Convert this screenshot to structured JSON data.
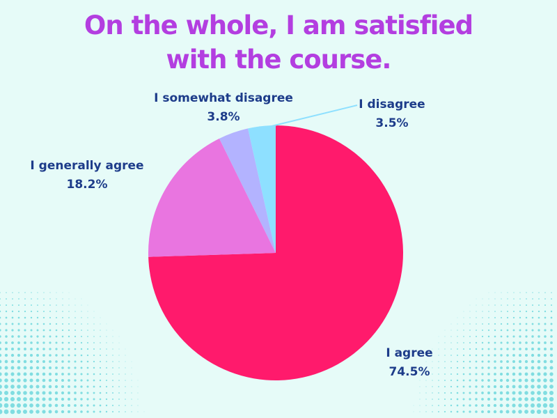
{
  "title_line1": "On the whole, I am satisfied",
  "title_line2": "with the course.",
  "colors": {
    "background": "#e6fbf8",
    "title": "#b33ee0",
    "label": "#1d3c8a",
    "dots": "#5ed3da"
  },
  "chart_data": {
    "type": "pie",
    "title": "On the whole, I am satisfied with the course.",
    "slices": [
      {
        "label": "I agree",
        "value": 74.5,
        "display": "74.5%",
        "color": "#ff1a6c"
      },
      {
        "label": "I generally agree",
        "value": 18.2,
        "display": "18.2%",
        "color": "#e975e0"
      },
      {
        "label": "I somewhat disagree",
        "value": 3.8,
        "display": "3.8%",
        "color": "#b3b3ff"
      },
      {
        "label": "I disagree",
        "value": 3.5,
        "display": "3.5%",
        "color": "#8ee0ff"
      }
    ]
  }
}
